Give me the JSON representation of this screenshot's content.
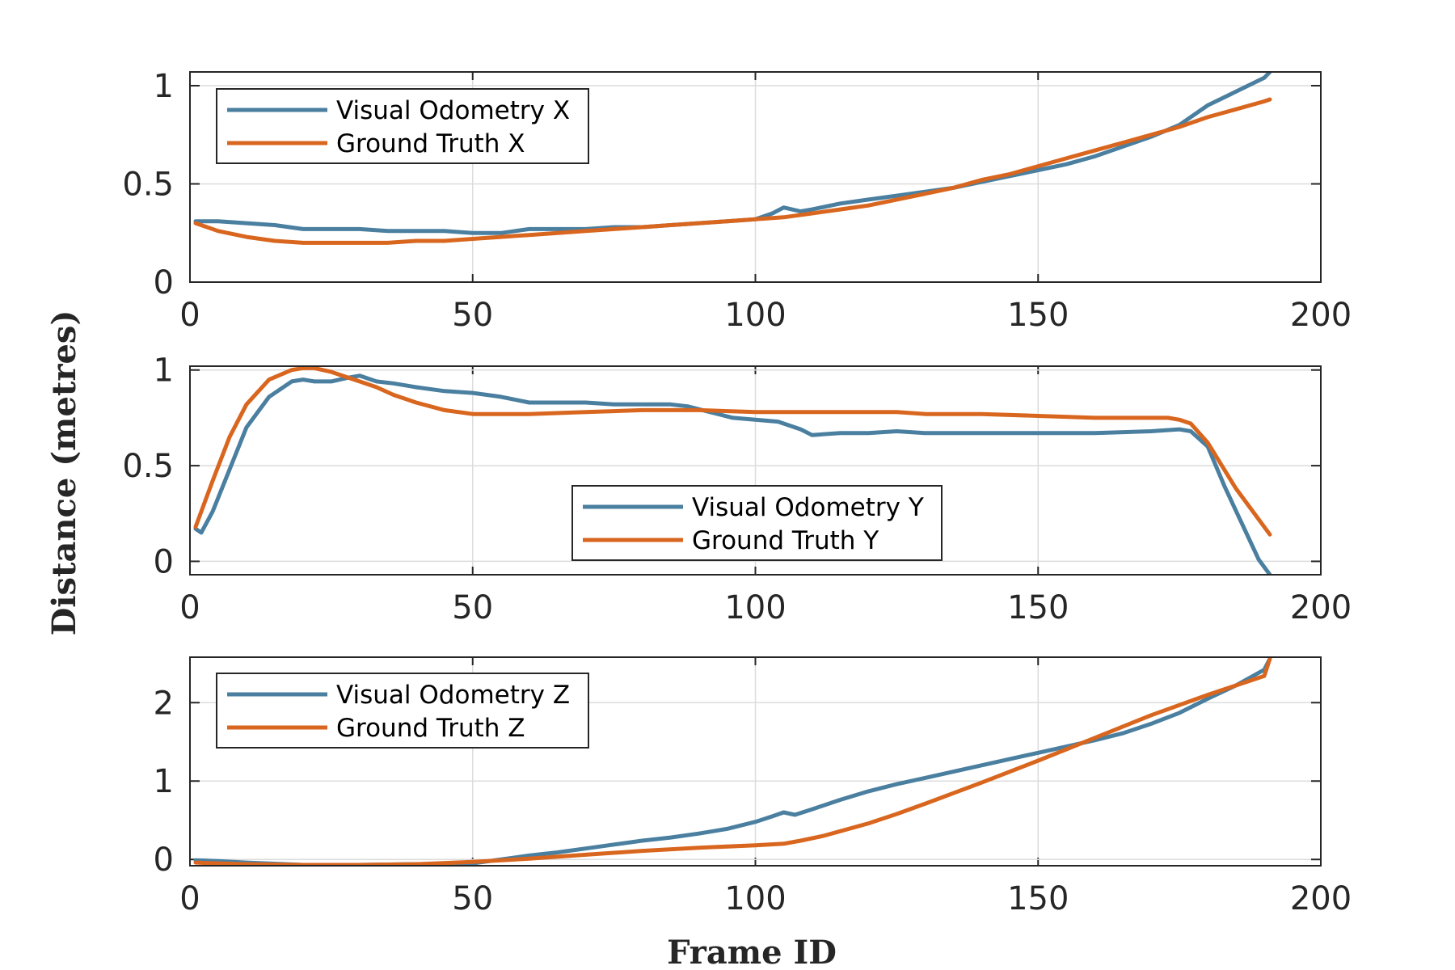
{
  "colors": {
    "visual_odometry": "#4a7fa0",
    "ground_truth": "#d9661f"
  },
  "ylabel": "Distance (metres)",
  "xlabel": "Frame ID",
  "chart_data": [
    {
      "type": "line",
      "xlim": [
        0,
        200
      ],
      "ylim": [
        0,
        1.07
      ],
      "xticks": [
        0,
        50,
        100,
        150,
        200
      ],
      "yticks": [
        0,
        0.5,
        1
      ],
      "ytick_labels": [
        "0",
        "0.5",
        "1"
      ],
      "grid": true,
      "legend_position": "top-left",
      "series": [
        {
          "name": "Visual Odometry X",
          "color": "#4a7fa0",
          "x": [
            1,
            5,
            10,
            15,
            20,
            25,
            30,
            35,
            40,
            45,
            50,
            55,
            60,
            65,
            70,
            75,
            80,
            85,
            90,
            95,
            100,
            103,
            105,
            108,
            110,
            115,
            120,
            125,
            130,
            135,
            140,
            145,
            150,
            155,
            160,
            165,
            170,
            175,
            180,
            185,
            190,
            191
          ],
          "y": [
            0.31,
            0.31,
            0.3,
            0.29,
            0.27,
            0.27,
            0.27,
            0.26,
            0.26,
            0.26,
            0.25,
            0.25,
            0.27,
            0.27,
            0.27,
            0.28,
            0.28,
            0.29,
            0.3,
            0.31,
            0.32,
            0.35,
            0.38,
            0.36,
            0.37,
            0.4,
            0.42,
            0.44,
            0.46,
            0.48,
            0.51,
            0.54,
            0.57,
            0.6,
            0.64,
            0.69,
            0.74,
            0.8,
            0.9,
            0.97,
            1.04,
            1.07
          ]
        },
        {
          "name": "Ground Truth X",
          "color": "#d9661f",
          "x": [
            1,
            5,
            10,
            15,
            20,
            25,
            30,
            35,
            40,
            45,
            50,
            55,
            60,
            65,
            70,
            75,
            80,
            85,
            90,
            95,
            100,
            105,
            110,
            115,
            120,
            125,
            130,
            135,
            140,
            145,
            150,
            155,
            160,
            165,
            170,
            175,
            180,
            185,
            190,
            191
          ],
          "y": [
            0.3,
            0.26,
            0.23,
            0.21,
            0.2,
            0.2,
            0.2,
            0.2,
            0.21,
            0.21,
            0.22,
            0.23,
            0.24,
            0.25,
            0.26,
            0.27,
            0.28,
            0.29,
            0.3,
            0.31,
            0.32,
            0.33,
            0.35,
            0.37,
            0.39,
            0.42,
            0.45,
            0.48,
            0.52,
            0.55,
            0.59,
            0.63,
            0.67,
            0.71,
            0.75,
            0.79,
            0.84,
            0.88,
            0.92,
            0.93
          ]
        }
      ]
    },
    {
      "type": "line",
      "xlim": [
        0,
        200
      ],
      "ylim": [
        -0.07,
        1.02
      ],
      "xticks": [
        0,
        50,
        100,
        150,
        200
      ],
      "yticks": [
        0,
        0.5,
        1
      ],
      "ytick_labels": [
        "0",
        "0.5",
        "1"
      ],
      "grid": true,
      "legend_position": "center",
      "series": [
        {
          "name": "Visual Odometry Y",
          "color": "#4a7fa0",
          "x": [
            1,
            2,
            4,
            7,
            10,
            14,
            18,
            20,
            22,
            25,
            28,
            30,
            33,
            36,
            40,
            45,
            50,
            55,
            60,
            65,
            70,
            75,
            80,
            85,
            88,
            92,
            96,
            100,
            104,
            108,
            110,
            115,
            120,
            125,
            130,
            140,
            150,
            160,
            170,
            175,
            177,
            180,
            183,
            186,
            189,
            191
          ],
          "y": [
            0.17,
            0.15,
            0.26,
            0.48,
            0.7,
            0.86,
            0.94,
            0.95,
            0.94,
            0.94,
            0.96,
            0.97,
            0.94,
            0.93,
            0.91,
            0.89,
            0.88,
            0.86,
            0.83,
            0.83,
            0.83,
            0.82,
            0.82,
            0.82,
            0.81,
            0.78,
            0.75,
            0.74,
            0.73,
            0.69,
            0.66,
            0.67,
            0.67,
            0.68,
            0.67,
            0.67,
            0.67,
            0.67,
            0.68,
            0.69,
            0.68,
            0.6,
            0.39,
            0.2,
            0.01,
            -0.07
          ]
        },
        {
          "name": "Ground Truth Y",
          "color": "#d9661f",
          "x": [
            1,
            4,
            7,
            10,
            14,
            18,
            20,
            22,
            25,
            28,
            30,
            33,
            36,
            40,
            45,
            50,
            55,
            60,
            70,
            80,
            90,
            100,
            110,
            120,
            125,
            130,
            140,
            150,
            160,
            170,
            173,
            175,
            177,
            180,
            185,
            191
          ],
          "y": [
            0.18,
            0.42,
            0.65,
            0.82,
            0.95,
            1.0,
            1.01,
            1.01,
            0.99,
            0.96,
            0.94,
            0.91,
            0.87,
            0.83,
            0.79,
            0.77,
            0.77,
            0.77,
            0.78,
            0.79,
            0.79,
            0.78,
            0.78,
            0.78,
            0.78,
            0.77,
            0.77,
            0.76,
            0.75,
            0.75,
            0.75,
            0.74,
            0.72,
            0.62,
            0.38,
            0.14
          ]
        }
      ]
    },
    {
      "type": "line",
      "xlim": [
        0,
        200
      ],
      "ylim": [
        -0.08,
        2.58
      ],
      "xticks": [
        0,
        50,
        100,
        150,
        200
      ],
      "yticks": [
        0,
        1,
        2
      ],
      "ytick_labels": [
        "0",
        "1",
        "2"
      ],
      "grid": true,
      "legend_position": "top-left",
      "series": [
        {
          "name": "Visual Odometry Z",
          "color": "#4a7fa0",
          "x": [
            1,
            5,
            10,
            20,
            30,
            40,
            50,
            55,
            60,
            65,
            70,
            75,
            80,
            85,
            90,
            95,
            100,
            103,
            105,
            107,
            110,
            115,
            120,
            125,
            130,
            140,
            150,
            155,
            160,
            165,
            170,
            175,
            180,
            185,
            190,
            191
          ],
          "y": [
            -0.01,
            -0.02,
            -0.04,
            -0.07,
            -0.07,
            -0.06,
            -0.05,
            0.0,
            0.05,
            0.09,
            0.14,
            0.19,
            0.24,
            0.28,
            0.33,
            0.39,
            0.48,
            0.55,
            0.6,
            0.57,
            0.64,
            0.76,
            0.87,
            0.96,
            1.04,
            1.2,
            1.36,
            1.44,
            1.52,
            1.61,
            1.73,
            1.87,
            2.05,
            2.22,
            2.42,
            2.56
          ]
        },
        {
          "name": "Ground Truth Z",
          "color": "#d9661f",
          "x": [
            1,
            5,
            10,
            20,
            30,
            40,
            50,
            60,
            70,
            80,
            90,
            100,
            105,
            108,
            112,
            115,
            120,
            125,
            130,
            140,
            150,
            160,
            170,
            180,
            190,
            191
          ],
          "y": [
            -0.04,
            -0.05,
            -0.06,
            -0.07,
            -0.07,
            -0.06,
            -0.03,
            0.01,
            0.06,
            0.11,
            0.15,
            0.18,
            0.2,
            0.24,
            0.3,
            0.36,
            0.46,
            0.58,
            0.71,
            0.98,
            1.26,
            1.55,
            1.84,
            2.1,
            2.34,
            2.56
          ]
        }
      ]
    }
  ]
}
